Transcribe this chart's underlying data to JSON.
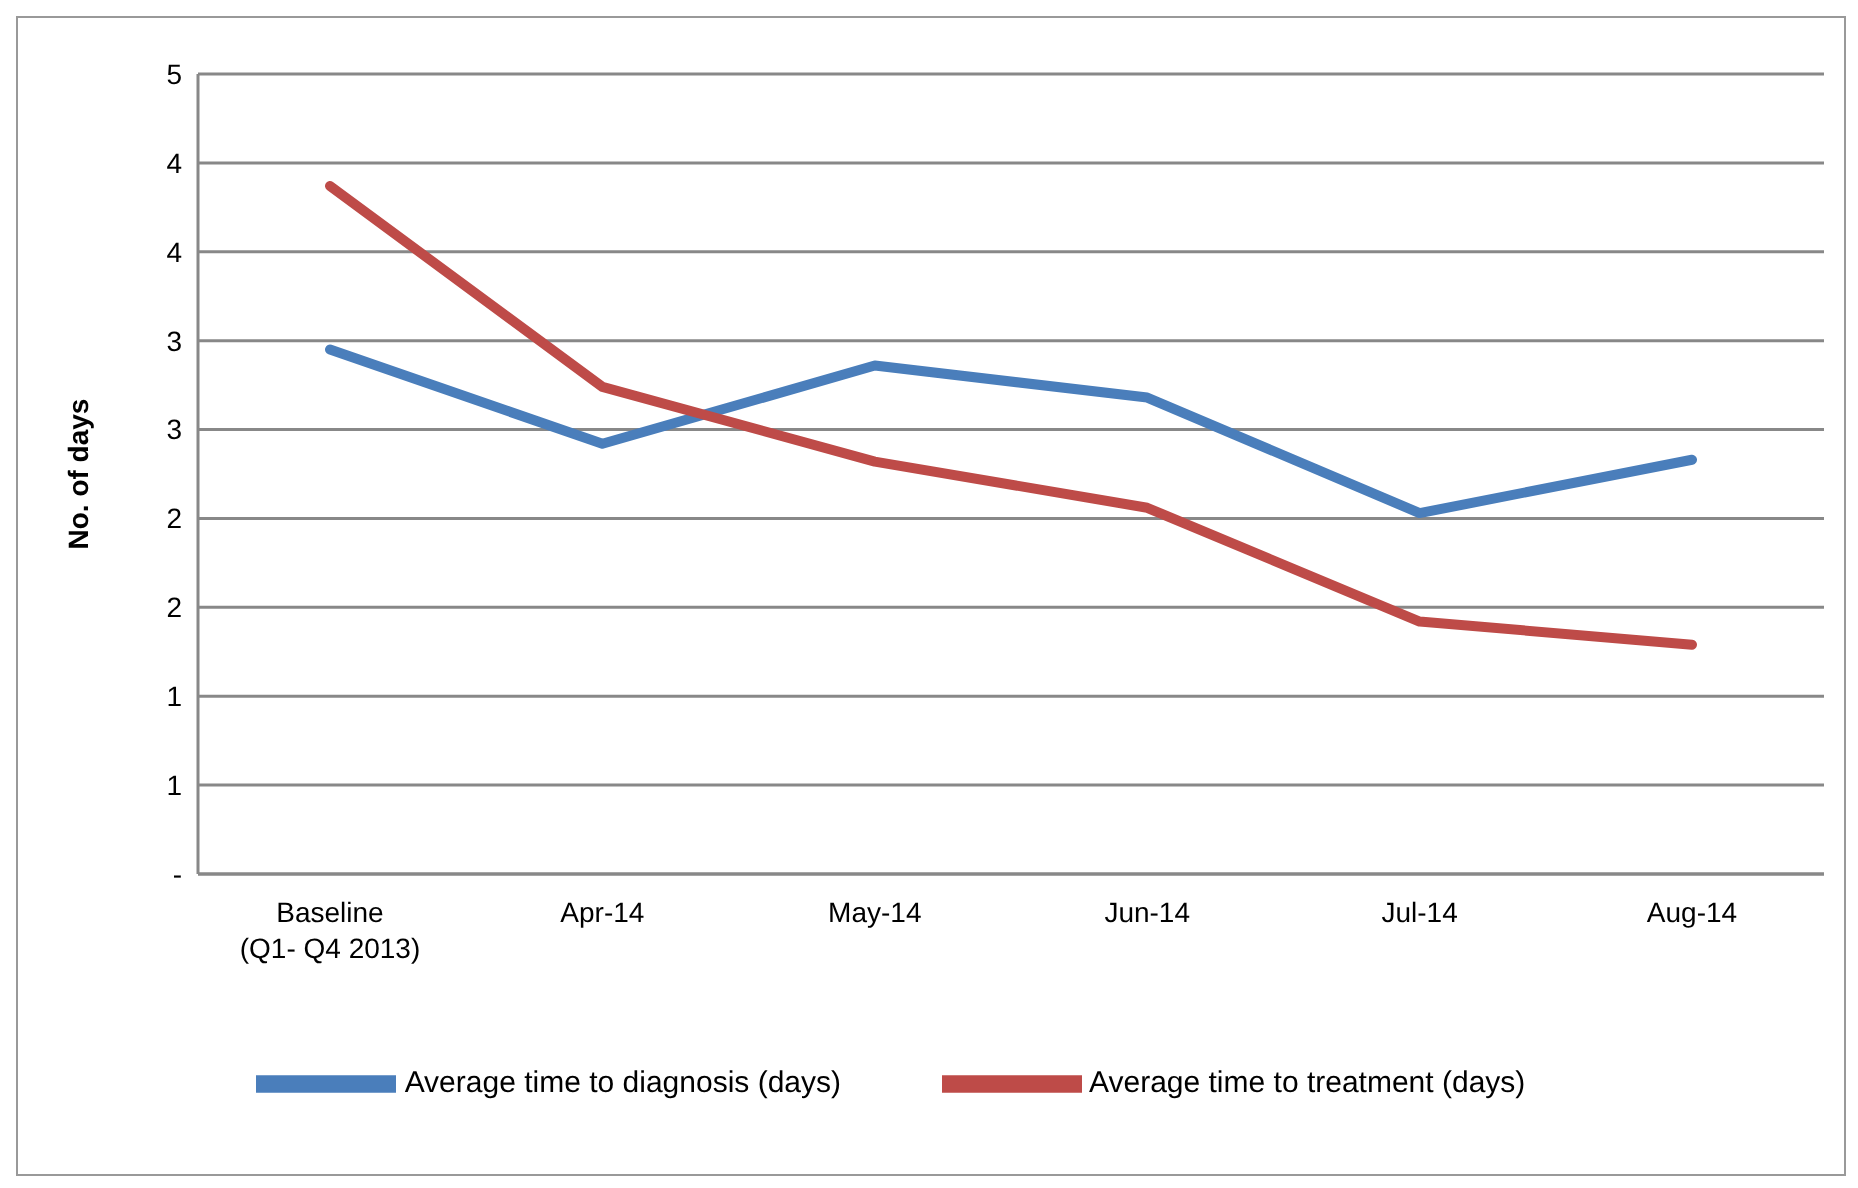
{
  "chart_data": {
    "type": "line",
    "ylabel": "No. of days",
    "categories": [
      "Baseline\n(Q1- Q4 2013)",
      "Apr-14",
      "May-14",
      "Jun-14",
      "Jul-14",
      "Aug-14"
    ],
    "series": [
      {
        "name": "Average time to diagnosis (days)",
        "color": "#4a7ebb",
        "values": [
          2.95,
          2.42,
          2.86,
          2.68,
          2.03,
          2.33
        ]
      },
      {
        "name": "Average time to treatment (days)",
        "color": "#be4b48",
        "values": [
          3.87,
          2.74,
          2.32,
          2.06,
          1.42,
          1.29
        ]
      }
    ],
    "ylim": [
      0,
      4.5
    ],
    "yticks": [
      {
        "value": 0,
        "label": "-"
      },
      {
        "value": 0.5,
        "label": "1"
      },
      {
        "value": 1,
        "label": "1"
      },
      {
        "value": 1.5,
        "label": "2"
      },
      {
        "value": 2,
        "label": "2"
      },
      {
        "value": 2.5,
        "label": "3"
      },
      {
        "value": 3,
        "label": "3"
      },
      {
        "value": 3.5,
        "label": "4"
      },
      {
        "value": 4,
        "label": "4"
      },
      {
        "value": 4.5,
        "label": "5"
      }
    ],
    "grid": "y",
    "legend": "bottom",
    "marker": "none",
    "line_style": "solid"
  }
}
